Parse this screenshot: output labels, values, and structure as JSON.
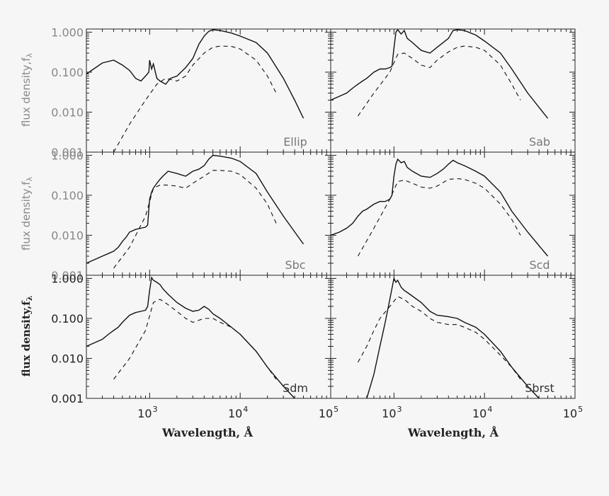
{
  "chart_data": {
    "type": "line",
    "x_scale": "log",
    "y_scale": "log",
    "xlim": [
      200,
      100000
    ],
    "ylim": [
      0.001,
      1.2
    ],
    "x_ticks": [
      1000,
      10000,
      100000
    ],
    "x_tick_labels": [
      "10",
      "10",
      "10"
    ],
    "x_tick_exponents": [
      "3",
      "4",
      "5"
    ],
    "y_ticks": [
      1,
      0.1,
      0.01,
      0.001
    ],
    "y_tick_labels": [
      "1.000",
      "0.100",
      "0.010",
      "0.001"
    ],
    "ylabel": "flux density,f",
    "ylabel_subscript": "λ",
    "xlabel": "Wavelength, Å",
    "line_color": "#111111",
    "panels": [
      {
        "label": "Ellip",
        "series": [
          {
            "style": "solid",
            "x": [
              200,
              300,
              400,
              500,
              600,
              700,
              800,
              900,
              980,
              1000,
              1050,
              1100,
              1200,
              1300,
              1500,
              1700,
              2000,
              2500,
              3000,
              3500,
              4000,
              4500,
              5000,
              6000,
              8000,
              10000,
              15000,
              20000,
              30000,
              40000,
              50000
            ],
            "y": [
              0.09,
              0.17,
              0.2,
              0.15,
              0.11,
              0.07,
              0.06,
              0.08,
              0.1,
              0.2,
              0.12,
              0.16,
              0.07,
              0.06,
              0.05,
              0.07,
              0.08,
              0.13,
              0.22,
              0.5,
              0.8,
              1.05,
              1.15,
              1.1,
              0.95,
              0.8,
              0.55,
              0.3,
              0.07,
              0.02,
              0.007
            ]
          },
          {
            "style": "dashed",
            "x": [
              400,
              600,
              900,
              1200,
              1500,
              2000,
              2500,
              3000,
              4000,
              5000,
              6000,
              8000,
              10000,
              15000,
              20000,
              25000
            ],
            "y": [
              0.001,
              0.005,
              0.02,
              0.05,
              0.07,
              0.06,
              0.08,
              0.15,
              0.3,
              0.42,
              0.45,
              0.44,
              0.38,
              0.2,
              0.08,
              0.03
            ]
          }
        ]
      },
      {
        "label": "Sab",
        "series": [
          {
            "style": "solid",
            "x": [
              200,
              250,
              300,
              350,
              400,
              450,
              500,
              600,
              700,
              800,
              900,
              950,
              1000,
              1050,
              1100,
              1200,
              1300,
              1400,
              1600,
              2000,
              2500,
              3000,
              3500,
              4000,
              4500,
              5000,
              6000,
              8000,
              10000,
              15000,
              20000,
              30000,
              50000
            ],
            "y": [
              0.02,
              0.025,
              0.03,
              0.04,
              0.05,
              0.06,
              0.07,
              0.1,
              0.12,
              0.12,
              0.13,
              0.14,
              0.4,
              1.0,
              1.15,
              0.9,
              1.1,
              0.7,
              0.55,
              0.35,
              0.3,
              0.42,
              0.55,
              0.7,
              1.1,
              1.15,
              1.1,
              0.85,
              0.6,
              0.3,
              0.12,
              0.03,
              0.007
            ]
          },
          {
            "style": "dashed",
            "x": [
              400,
              600,
              900,
              1100,
              1300,
              1600,
              2000,
              2500,
              3000,
              4000,
              5000,
              6000,
              8000,
              10000,
              15000,
              20000,
              25000
            ],
            "y": [
              0.008,
              0.03,
              0.1,
              0.28,
              0.3,
              0.22,
              0.15,
              0.13,
              0.2,
              0.32,
              0.42,
              0.45,
              0.42,
              0.35,
              0.15,
              0.05,
              0.02
            ]
          }
        ]
      },
      {
        "label": "Sbc",
        "series": [
          {
            "style": "solid",
            "x": [
              200,
              250,
              300,
              350,
              400,
              450,
              500,
              550,
              600,
              700,
              800,
              900,
              950,
              1000,
              1050,
              1100,
              1200,
              1300,
              1400,
              1600,
              2000,
              2500,
              3000,
              3500,
              4000,
              4500,
              5000,
              6000,
              8000,
              10000,
              15000,
              20000,
              30000,
              50000
            ],
            "y": [
              0.002,
              0.0025,
              0.003,
              0.0035,
              0.004,
              0.005,
              0.007,
              0.009,
              0.012,
              0.014,
              0.015,
              0.016,
              0.018,
              0.08,
              0.12,
              0.15,
              0.2,
              0.25,
              0.3,
              0.4,
              0.35,
              0.3,
              0.4,
              0.45,
              0.55,
              0.8,
              1.0,
              0.95,
              0.85,
              0.7,
              0.35,
              0.12,
              0.03,
              0.006
            ]
          },
          {
            "style": "dashed",
            "x": [
              400,
              600,
              900,
              1100,
              1300,
              1600,
              2000,
              2500,
              3000,
              4000,
              5000,
              6000,
              8000,
              10000,
              15000,
              20000,
              25000
            ],
            "y": [
              0.0015,
              0.005,
              0.03,
              0.15,
              0.18,
              0.18,
              0.17,
              0.15,
              0.2,
              0.3,
              0.42,
              0.42,
              0.4,
              0.33,
              0.15,
              0.06,
              0.02
            ]
          }
        ]
      },
      {
        "label": "Scd",
        "series": [
          {
            "style": "solid",
            "x": [
              200,
              250,
              300,
              350,
              400,
              450,
              500,
              600,
              700,
              800,
              900,
              950,
              1000,
              1050,
              1100,
              1200,
              1300,
              1400,
              1600,
              2000,
              2500,
              3000,
              3500,
              4000,
              4500,
              5000,
              6000,
              8000,
              10000,
              15000,
              20000,
              30000,
              50000
            ],
            "y": [
              0.01,
              0.012,
              0.015,
              0.02,
              0.03,
              0.04,
              0.045,
              0.06,
              0.07,
              0.07,
              0.08,
              0.1,
              0.3,
              0.6,
              0.8,
              0.65,
              0.7,
              0.5,
              0.4,
              0.3,
              0.28,
              0.35,
              0.45,
              0.6,
              0.75,
              0.65,
              0.55,
              0.4,
              0.3,
              0.12,
              0.04,
              0.012,
              0.003
            ]
          },
          {
            "style": "dashed",
            "x": [
              400,
              600,
              900,
              1100,
              1300,
              1600,
              2000,
              2500,
              3000,
              4000,
              5000,
              6000,
              8000,
              10000,
              15000,
              20000,
              25000
            ],
            "y": [
              0.003,
              0.015,
              0.08,
              0.22,
              0.24,
              0.2,
              0.16,
              0.15,
              0.17,
              0.25,
              0.26,
              0.25,
              0.2,
              0.15,
              0.06,
              0.025,
              0.01
            ]
          }
        ]
      },
      {
        "label": "Sdm",
        "series": [
          {
            "style": "solid",
            "x": [
              200,
              250,
              300,
              350,
              400,
              450,
              500,
              600,
              700,
              800,
              900,
              950,
              1000,
              1050,
              1100,
              1200,
              1300,
              1400,
              1600,
              2000,
              2500,
              3000,
              3500,
              4000,
              4500,
              5000,
              6000,
              8000,
              10000,
              15000,
              20000,
              30000,
              40000
            ],
            "y": [
              0.02,
              0.025,
              0.03,
              0.04,
              0.05,
              0.06,
              0.08,
              0.12,
              0.14,
              0.15,
              0.16,
              0.2,
              0.5,
              1.05,
              0.9,
              0.8,
              0.7,
              0.55,
              0.4,
              0.25,
              0.18,
              0.15,
              0.16,
              0.2,
              0.17,
              0.13,
              0.1,
              0.06,
              0.04,
              0.015,
              0.006,
              0.002,
              0.001
            ]
          },
          {
            "style": "dashed",
            "x": [
              400,
              600,
              900,
              1100,
              1300,
              1600,
              2000,
              2500,
              3000,
              4000,
              5000,
              6000,
              8000,
              10000,
              15000,
              20000,
              25000
            ],
            "y": [
              0.003,
              0.01,
              0.05,
              0.25,
              0.3,
              0.22,
              0.15,
              0.1,
              0.08,
              0.1,
              0.1,
              0.08,
              0.06,
              0.04,
              0.015,
              0.006,
              0.003
            ]
          }
        ]
      },
      {
        "label": "Sbrst",
        "series": [
          {
            "style": "solid",
            "x": [
              500,
              600,
              700,
              800,
              900,
              1000,
              1050,
              1100,
              1200,
              1300,
              1500,
              2000,
              2500,
              3000,
              4000,
              5000,
              6000,
              8000,
              10000,
              15000,
              20000,
              30000,
              40000
            ],
            "y": [
              0.001,
              0.004,
              0.02,
              0.08,
              0.3,
              1.0,
              0.8,
              0.9,
              0.6,
              0.5,
              0.4,
              0.25,
              0.15,
              0.12,
              0.11,
              0.1,
              0.08,
              0.06,
              0.04,
              0.015,
              0.006,
              0.002,
              0.001
            ]
          },
          {
            "style": "dashed",
            "x": [
              400,
              500,
              600,
              700,
              900,
              1100,
              1300,
              1600,
              2000,
              2500,
              3000,
              4000,
              5000,
              6000,
              8000,
              10000,
              15000,
              20000,
              25000
            ],
            "y": [
              0.008,
              0.02,
              0.05,
              0.1,
              0.2,
              0.35,
              0.3,
              0.2,
              0.15,
              0.1,
              0.08,
              0.07,
              0.07,
              0.06,
              0.045,
              0.03,
              0.012,
              0.006,
              0.003
            ]
          }
        ]
      }
    ]
  }
}
